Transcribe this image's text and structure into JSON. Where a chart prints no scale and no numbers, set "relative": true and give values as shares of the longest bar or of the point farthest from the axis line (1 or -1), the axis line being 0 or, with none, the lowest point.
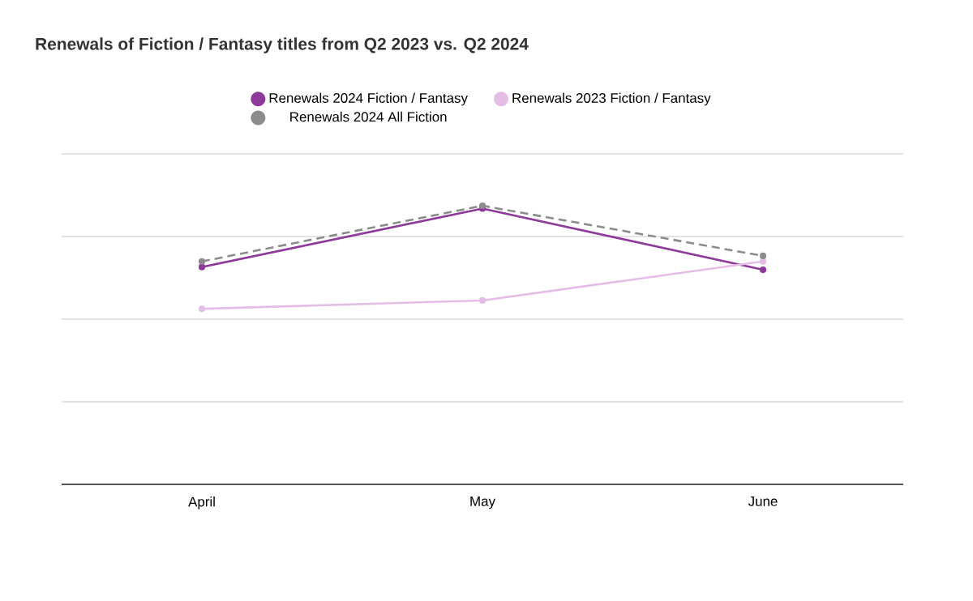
{
  "chart_data": {
    "type": "line",
    "title": "Renewals of Fiction / Fantasy titles from Q2 2023 vs. Q2 2024",
    "categories": [
      "April",
      "May",
      "June"
    ],
    "relative": true,
    "grid": "y",
    "legend": "top",
    "marker": "circle",
    "line_style": "solid",
    "series": [
      {
        "name": "Renewals 2024 Fiction / Fantasy",
        "color": "#8e3a9b",
        "values": [
          0.78,
          0.99,
          0.77
        ]
      },
      {
        "name": "Renewals 2023 Fiction / Fantasy",
        "color": "#e3bde6",
        "values": [
          0.63,
          0.66,
          0.8
        ]
      },
      {
        "name": "Renewals 2024 All Fiction",
        "color": "#8c8c8c",
        "line_style": "dashed",
        "values": [
          0.8,
          1,
          0.82
        ]
      }
    ]
  }
}
